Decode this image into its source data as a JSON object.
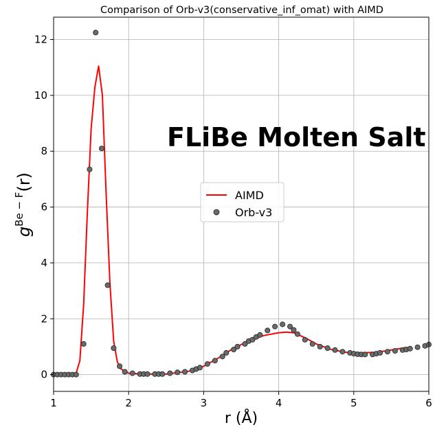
{
  "chart_data": {
    "type": "line",
    "title": "Comparison of Orb-v3(conservative_inf_omat) with AIMD",
    "xlabel": "r (Å)",
    "ylabel_base": "g",
    "ylabel_sup": "Be − F",
    "ylabel_tail": "(r)",
    "annotation": "FLiBe Molten Salt",
    "xlim": [
      1,
      6
    ],
    "ylim": [
      -0.6,
      12.8
    ],
    "x_ticks": [
      1,
      2,
      3,
      4,
      5,
      6
    ],
    "y_ticks": [
      0,
      2,
      4,
      6,
      8,
      10,
      12
    ],
    "grid": true,
    "legend_placement": "center",
    "series": [
      {
        "name": "AIMD",
        "kind": "line",
        "color": "#ff0000",
        "x": [
          1.0,
          1.1,
          1.2,
          1.3,
          1.35,
          1.4,
          1.45,
          1.5,
          1.55,
          1.6,
          1.65,
          1.7,
          1.75,
          1.8,
          1.85,
          1.9,
          2.0,
          2.2,
          2.5,
          2.8,
          3.0,
          3.2,
          3.4,
          3.6,
          3.8,
          4.0,
          4.1,
          4.2,
          4.35,
          4.5,
          4.7,
          4.9,
          5.1,
          5.3,
          5.5,
          5.7
        ],
        "y": [
          0.05,
          0.05,
          0.05,
          0.05,
          0.5,
          2.5,
          5.8,
          8.8,
          10.3,
          11.05,
          10.0,
          6.5,
          3.3,
          1.2,
          0.45,
          0.2,
          0.05,
          0.02,
          0.02,
          0.12,
          0.3,
          0.6,
          0.95,
          1.2,
          1.4,
          1.5,
          1.52,
          1.5,
          1.32,
          1.1,
          0.9,
          0.8,
          0.78,
          0.8,
          0.88,
          0.97
        ]
      },
      {
        "name": "Orb-v3",
        "kind": "scatter",
        "color": "#6a6a6a",
        "x": [
          1.0,
          1.05,
          1.1,
          1.15,
          1.2,
          1.25,
          1.3,
          1.4,
          1.48,
          1.56,
          1.64,
          1.72,
          1.8,
          1.88,
          1.95,
          2.05,
          2.15,
          2.2,
          2.25,
          2.35,
          2.4,
          2.45,
          2.55,
          2.65,
          2.75,
          2.85,
          2.9,
          2.95,
          3.05,
          3.15,
          3.25,
          3.3,
          3.4,
          3.45,
          3.55,
          3.6,
          3.65,
          3.7,
          3.75,
          3.85,
          3.95,
          4.05,
          4.15,
          4.2,
          4.25,
          4.35,
          4.45,
          4.55,
          4.65,
          4.75,
          4.85,
          4.95,
          5.0,
          5.05,
          5.1,
          5.15,
          5.25,
          5.3,
          5.35,
          5.45,
          5.55,
          5.65,
          5.7,
          5.75,
          5.85,
          5.95,
          6.0
        ],
        "y": [
          0.0,
          0.0,
          0.0,
          0.0,
          0.0,
          0.0,
          0.0,
          1.1,
          7.35,
          12.25,
          8.1,
          3.2,
          0.95,
          0.3,
          0.1,
          0.05,
          0.02,
          0.02,
          0.02,
          0.02,
          0.02,
          0.02,
          0.05,
          0.08,
          0.1,
          0.15,
          0.2,
          0.25,
          0.38,
          0.5,
          0.65,
          0.78,
          0.9,
          1.0,
          1.1,
          1.2,
          1.25,
          1.35,
          1.42,
          1.58,
          1.72,
          1.8,
          1.72,
          1.6,
          1.45,
          1.25,
          1.1,
          1.0,
          0.95,
          0.88,
          0.82,
          0.78,
          0.75,
          0.73,
          0.72,
          0.72,
          0.72,
          0.75,
          0.78,
          0.82,
          0.85,
          0.88,
          0.9,
          0.93,
          0.98,
          1.03,
          1.08
        ]
      }
    ]
  }
}
